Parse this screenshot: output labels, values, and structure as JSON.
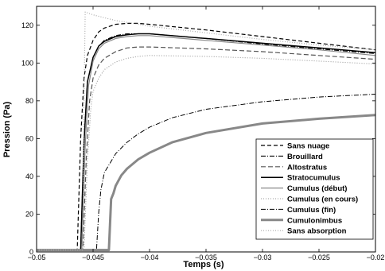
{
  "chart_data": {
    "type": "line",
    "xlabel": "Temps (s)",
    "ylabel": "Pression (Pa)",
    "xlim": [
      -0.05,
      -0.02
    ],
    "ylim": [
      0,
      130
    ],
    "xticks": [
      -0.05,
      -0.045,
      -0.04,
      -0.035,
      -0.03,
      -0.025,
      -0.02
    ],
    "xtick_labels": [
      "−0.05",
      "−0.045",
      "−0.04",
      "−0.035",
      "−0.03",
      "−0.025",
      "−0.02"
    ],
    "yticks": [
      0,
      20,
      40,
      60,
      80,
      100,
      120
    ],
    "ytick_labels": [
      "0",
      "20",
      "40",
      "60",
      "80",
      "100",
      "120"
    ],
    "grid": false,
    "legend_position": "lower-right",
    "series": [
      {
        "name": "Sans nuage",
        "color": "#000000",
        "dash": "5,3",
        "width": 1.2,
        "x": [
          -0.05,
          -0.0464,
          -0.0461,
          -0.0458,
          -0.0455,
          -0.045,
          -0.0445,
          -0.044,
          -0.043,
          -0.042,
          -0.041,
          -0.04,
          -0.035,
          -0.03,
          -0.025,
          -0.02
        ],
        "y": [
          1,
          1,
          60,
          92,
          104,
          112,
          116.5,
          118.5,
          120.5,
          121,
          121,
          120.5,
          117.5,
          114,
          110.5,
          107
        ]
      },
      {
        "name": "Brouillard",
        "color": "#000000",
        "dash": "6,2,1,2",
        "width": 1.1,
        "x": [
          -0.05,
          -0.0461,
          -0.0458,
          -0.0455,
          -0.045,
          -0.0445,
          -0.044,
          -0.043,
          -0.042,
          -0.041,
          -0.04,
          -0.035,
          -0.03,
          -0.025,
          -0.02
        ],
        "y": [
          1,
          1,
          58,
          90,
          103,
          109,
          112,
          114.5,
          115.5,
          115.5,
          115.5,
          113,
          110,
          107.5,
          105
        ]
      },
      {
        "name": "Altostratus",
        "color": "#555555",
        "dash": "6,3",
        "width": 1.2,
        "x": [
          -0.05,
          -0.0459,
          -0.0456,
          -0.0453,
          -0.045,
          -0.0445,
          -0.044,
          -0.043,
          -0.042,
          -0.041,
          -0.04,
          -0.035,
          -0.03,
          -0.025,
          -0.02
        ],
        "y": [
          1,
          1,
          50,
          80,
          92,
          99,
          102.5,
          106,
          108,
          108.5,
          108.5,
          107.5,
          106,
          104,
          102
        ]
      },
      {
        "name": "Stratocumulus",
        "color": "#000000",
        "dash": "",
        "width": 1.5,
        "x": [
          -0.05,
          -0.0461,
          -0.0458,
          -0.0455,
          -0.045,
          -0.0445,
          -0.044,
          -0.043,
          -0.042,
          -0.041,
          -0.04,
          -0.035,
          -0.03,
          -0.025,
          -0.02
        ],
        "y": [
          1,
          1,
          58,
          90,
          103,
          109,
          111.5,
          114,
          115,
          115.5,
          115.5,
          113,
          110.5,
          108,
          105.5
        ]
      },
      {
        "name": "Cumulus (début)",
        "color": "#888888",
        "dash": "",
        "width": 1.2,
        "x": [
          -0.05,
          -0.046,
          -0.0457,
          -0.0454,
          -0.045,
          -0.0445,
          -0.044,
          -0.043,
          -0.042,
          -0.041,
          -0.04,
          -0.035,
          -0.03,
          -0.025,
          -0.02
        ],
        "y": [
          1,
          1,
          56,
          88,
          101,
          107.5,
          110.5,
          113,
          114,
          114.5,
          114.5,
          112,
          109.5,
          107,
          104
        ]
      },
      {
        "name": "Cumulus (en cours)",
        "color": "#999999",
        "dash": "1,2",
        "width": 1.1,
        "x": [
          -0.05,
          -0.0458,
          -0.0455,
          -0.0452,
          -0.045,
          -0.0445,
          -0.044,
          -0.043,
          -0.042,
          -0.041,
          -0.04,
          -0.035,
          -0.03,
          -0.025,
          -0.02
        ],
        "y": [
          1,
          1,
          48,
          76,
          85,
          92,
          96.5,
          100.5,
          102.5,
          103.5,
          104,
          103.5,
          102.5,
          101,
          99.5
        ]
      },
      {
        "name": "Cumulus (fin)",
        "color": "#000000",
        "dash": "6,2,1,2",
        "width": 1.0,
        "x": [
          -0.05,
          -0.0447,
          -0.0445,
          -0.0443,
          -0.044,
          -0.043,
          -0.042,
          -0.041,
          -0.04,
          -0.038,
          -0.035,
          -0.03,
          -0.025,
          -0.02
        ],
        "y": [
          1,
          1,
          21,
          33,
          42,
          52,
          58,
          62.5,
          66,
          71,
          75.5,
          79.5,
          82,
          83.5
        ]
      },
      {
        "name": "Cumulonimbus",
        "color": "#888888",
        "dash": "",
        "width": 3.0,
        "x": [
          -0.05,
          -0.0436,
          -0.0434,
          -0.0432,
          -0.043,
          -0.0425,
          -0.042,
          -0.041,
          -0.04,
          -0.038,
          -0.035,
          -0.03,
          -0.025,
          -0.02
        ],
        "y": [
          1,
          1,
          28,
          31,
          35,
          40.5,
          44,
          49,
          52.5,
          58,
          63,
          68,
          70.5,
          72.5
        ]
      },
      {
        "name": "Sans absorption",
        "color": "#aaaaaa",
        "dash": "1,2",
        "width": 1.2,
        "x": [
          -0.05,
          -0.0459,
          -0.0458,
          -0.0457,
          -0.045,
          -0.044,
          -0.043,
          -0.042,
          -0.041,
          -0.04,
          -0.035,
          -0.03,
          -0.025,
          -0.02
        ],
        "y": [
          1,
          1,
          80,
          127,
          125.5,
          124,
          122.5,
          121.5,
          120.5,
          119.5,
          116,
          112.5,
          109.5,
          107
        ]
      }
    ]
  }
}
